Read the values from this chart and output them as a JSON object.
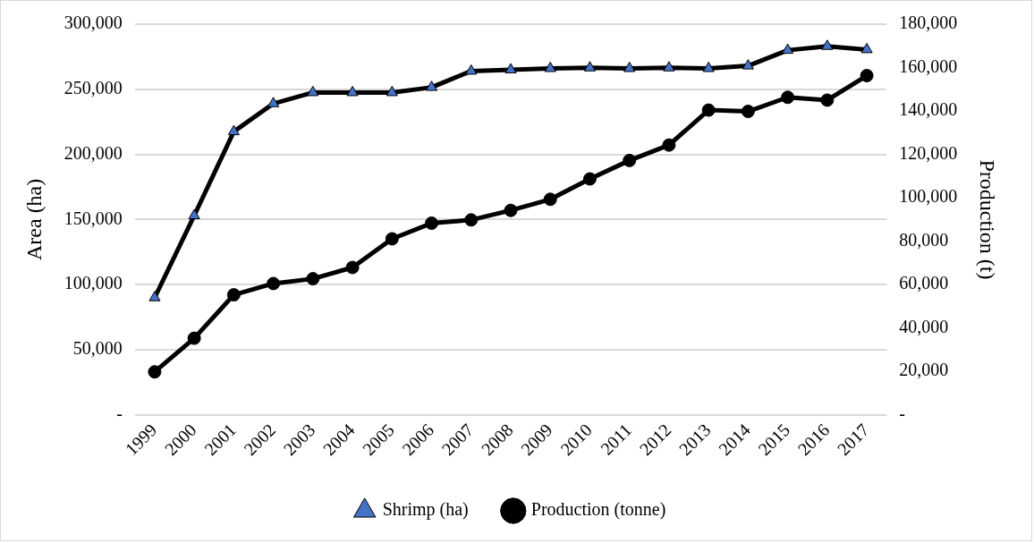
{
  "chart_data": {
    "type": "line",
    "ylabel": "Area (ha)",
    "y2label": "Production (t)",
    "categories": [
      "1999",
      "2000",
      "2001",
      "2002",
      "2003",
      "2004",
      "2005",
      "2006",
      "2007",
      "2008",
      "2009",
      "2010",
      "2011",
      "2012",
      "2013",
      "2014",
      "2015",
      "2016",
      "2017"
    ],
    "series": [
      {
        "name": "Shrimp (ha)",
        "color": "#000000",
        "marker": "triangle",
        "values": [
          90000,
          153000,
          217500,
          239000,
          247500,
          247500,
          247500,
          251500,
          264000,
          265000,
          266000,
          266500,
          266000,
          266500,
          266000,
          268000,
          280000,
          283000,
          280500
        ]
      },
      {
        "name": "Production (tonne)",
        "color": "#000000",
        "marker": "circle",
        "axis": "y2",
        "values": [
          19800,
          35300,
          55300,
          60500,
          62700,
          67900,
          81100,
          88300,
          89800,
          94200,
          99300,
          108700,
          117200,
          124300,
          140400,
          139800,
          146300,
          145000,
          156300
        ]
      }
    ],
    "ylim": [
      0,
      300000
    ],
    "yticks": [
      {
        "value": 0,
        "label": "-"
      },
      {
        "value": 50000,
        "label": "50,000"
      },
      {
        "value": 100000,
        "label": "100,000"
      },
      {
        "value": 150000,
        "label": "150,000"
      },
      {
        "value": 200000,
        "label": "200,000"
      },
      {
        "value": 250000,
        "label": "250,000"
      },
      {
        "value": 300000,
        "label": "300,000"
      }
    ],
    "y2lim": [
      0,
      180000
    ],
    "y2ticks": [
      {
        "value": 0,
        "label": "-"
      },
      {
        "value": 20000,
        "label": "20,000"
      },
      {
        "value": 40000,
        "label": "40,000"
      },
      {
        "value": 60000,
        "label": "60,000"
      },
      {
        "value": 80000,
        "label": "80,000"
      },
      {
        "value": 100000,
        "label": "100,000"
      },
      {
        "value": 120000,
        "label": "120,000"
      },
      {
        "value": 140000,
        "label": "140,000"
      },
      {
        "value": 160000,
        "label": "160,000"
      },
      {
        "value": 180000,
        "label": "180,000"
      }
    ],
    "grid": "y",
    "legend": "bottom",
    "line_style": "solid"
  }
}
